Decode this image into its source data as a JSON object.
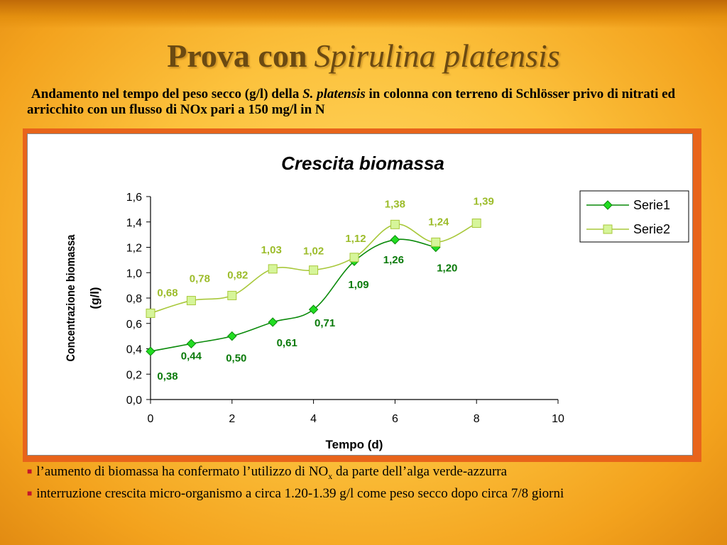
{
  "slide": {
    "title_plain": "Prova con",
    "title_italic": "Spirulina platensis",
    "subtitle_part1": "Andamento nel tempo del peso secco (g/l) della",
    "subtitle_italic": "S. platensis",
    "subtitle_part2": "in colonna con terreno di Schlösser privo di nitrati ed arricchito con un flusso di NOx pari a 150 mg/l in N",
    "bullets": [
      {
        "pre": "l’aumento di biomassa ha confermato l’utilizzo di NO",
        "sub": "x",
        "post": " da parte dell’alga verde-azzurra"
      },
      {
        "pre": "interruzione crescita micro-organismo a circa 1.20-1.39 g/l come peso secco dopo circa 7/8 giorni",
        "sub": "",
        "post": ""
      }
    ]
  },
  "chart_data": {
    "type": "line",
    "title": "Crescita biomassa",
    "xlabel": "Tempo (d)",
    "ylabel": "Concentrazione biomassa (g/l)",
    "xlim": [
      0,
      10
    ],
    "ylim": [
      0,
      1.6
    ],
    "xticks": [
      "0",
      "2",
      "4",
      "6",
      "8",
      "10"
    ],
    "yticks": [
      "0,0",
      "0,2",
      "0,4",
      "0,6",
      "0,8",
      "1,0",
      "1,2",
      "1,4",
      "1,6"
    ],
    "grid": false,
    "legend": "right",
    "series": [
      {
        "name": "Serie1",
        "color": "#0a8a0a",
        "marker_color": "#22dd22",
        "marker": "diamond",
        "x": [
          0,
          1,
          2,
          3,
          4,
          5,
          6,
          7
        ],
        "y": [
          0.38,
          0.44,
          0.5,
          0.61,
          0.71,
          1.09,
          1.26,
          1.2
        ],
        "labels": [
          "0,38",
          "0,44",
          "0,50",
          "0,61",
          "0,71",
          "1,09",
          "1,26",
          "1,20"
        ]
      },
      {
        "name": "Serie2",
        "color": "#a8c83a",
        "marker_color": "#d6f59a",
        "marker": "square",
        "x": [
          0,
          1,
          2,
          3,
          4,
          5,
          6,
          7,
          8
        ],
        "y": [
          0.68,
          0.78,
          0.82,
          1.03,
          1.02,
          1.12,
          1.38,
          1.24,
          1.39
        ],
        "labels": [
          "0,68",
          "0,78",
          "0,82",
          "1,03",
          "1,02",
          "1,12",
          "1,38",
          "1,24",
          "1,39"
        ]
      }
    ]
  }
}
